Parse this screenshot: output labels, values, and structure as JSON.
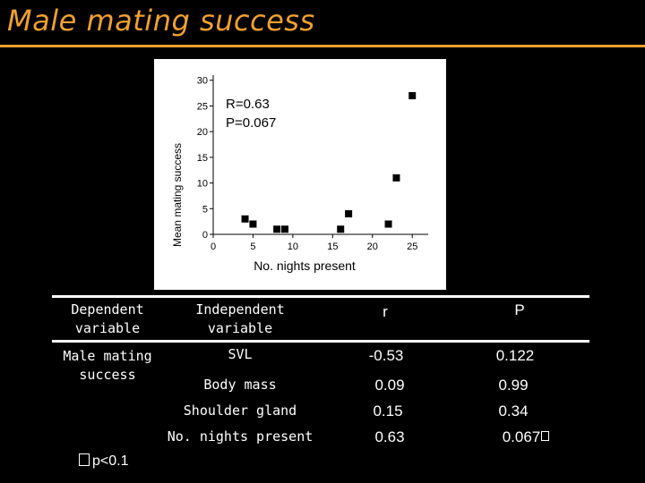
{
  "slide": {
    "title": "Male mating success",
    "footnote": "p<0.1"
  },
  "chart_data": {
    "type": "scatter",
    "xlabel": "No. nights present",
    "ylabel": "Mean mating success",
    "xlim": [
      0,
      27
    ],
    "ylim": [
      0,
      31
    ],
    "xticks": [
      0,
      5,
      10,
      15,
      20,
      25
    ],
    "yticks": [
      0,
      5,
      10,
      15,
      20,
      25,
      30
    ],
    "annotation_lines": [
      "R=0.63",
      "P=0.067"
    ],
    "points": [
      {
        "x": 4,
        "y": 3
      },
      {
        "x": 5,
        "y": 2
      },
      {
        "x": 8,
        "y": 1
      },
      {
        "x": 9,
        "y": 1
      },
      {
        "x": 16,
        "y": 1
      },
      {
        "x": 17,
        "y": 4
      },
      {
        "x": 22,
        "y": 2
      },
      {
        "x": 23,
        "y": 11
      },
      {
        "x": 25,
        "y": 27
      }
    ]
  },
  "table": {
    "headers": {
      "dependent": [
        "Dependent",
        "variable"
      ],
      "independent": [
        "Independent",
        "variable"
      ],
      "r": "r",
      "p": "P"
    },
    "dependent_value": [
      "Male mating",
      "success"
    ],
    "rows": [
      {
        "variable": "SVL",
        "r": "-0.53",
        "p": "0.122"
      },
      {
        "variable": "Body mass",
        "r": "0.09",
        "p": "0.99"
      },
      {
        "variable": "Shoulder gland",
        "r": "0.15",
        "p": "0.34"
      },
      {
        "variable": "No. nights present",
        "r": "0.63",
        "p": "0.067"
      }
    ]
  }
}
